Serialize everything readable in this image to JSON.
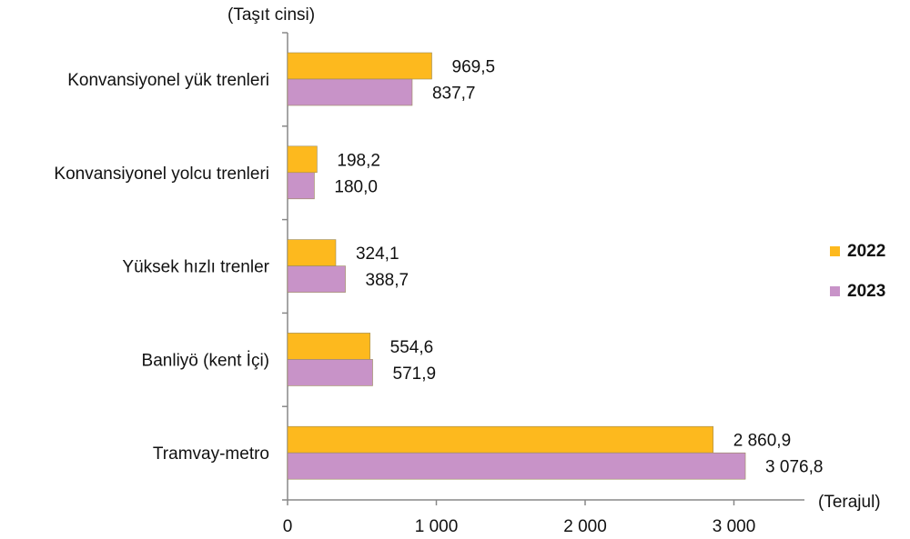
{
  "chart_data": {
    "type": "bar",
    "orientation": "horizontal",
    "title": "",
    "ylabel": "(Taşıt cinsi)",
    "xlabel": "(Terajul)",
    "categories": [
      "Konvansiyonel yük trenleri",
      "Konvansiyonel yolcu trenleri",
      "Yüksek hızlı trenler",
      "Banliyö (kent İçi)",
      "Tramvay-metro"
    ],
    "series": [
      {
        "name": "2022",
        "color": "#FDB91E",
        "values": [
          969.5,
          198.2,
          324.1,
          554.6,
          2860.9
        ],
        "labels": [
          "969,5",
          "198,2",
          "324,1",
          "554,6",
          "2 860,9"
        ]
      },
      {
        "name": "2023",
        "color": "#C893C8",
        "values": [
          837.7,
          180.0,
          388.7,
          571.9,
          3076.8
        ],
        "labels": [
          "837,7",
          "180,0",
          "388,7",
          "571,9",
          "3 076,8"
        ]
      }
    ],
    "xlim": [
      0,
      3500
    ],
    "ticks": [
      0,
      1000,
      2000,
      3000
    ],
    "tick_labels": [
      "0",
      "1 000",
      "2 000",
      "3 000"
    ],
    "grid": false,
    "legend": "right"
  }
}
